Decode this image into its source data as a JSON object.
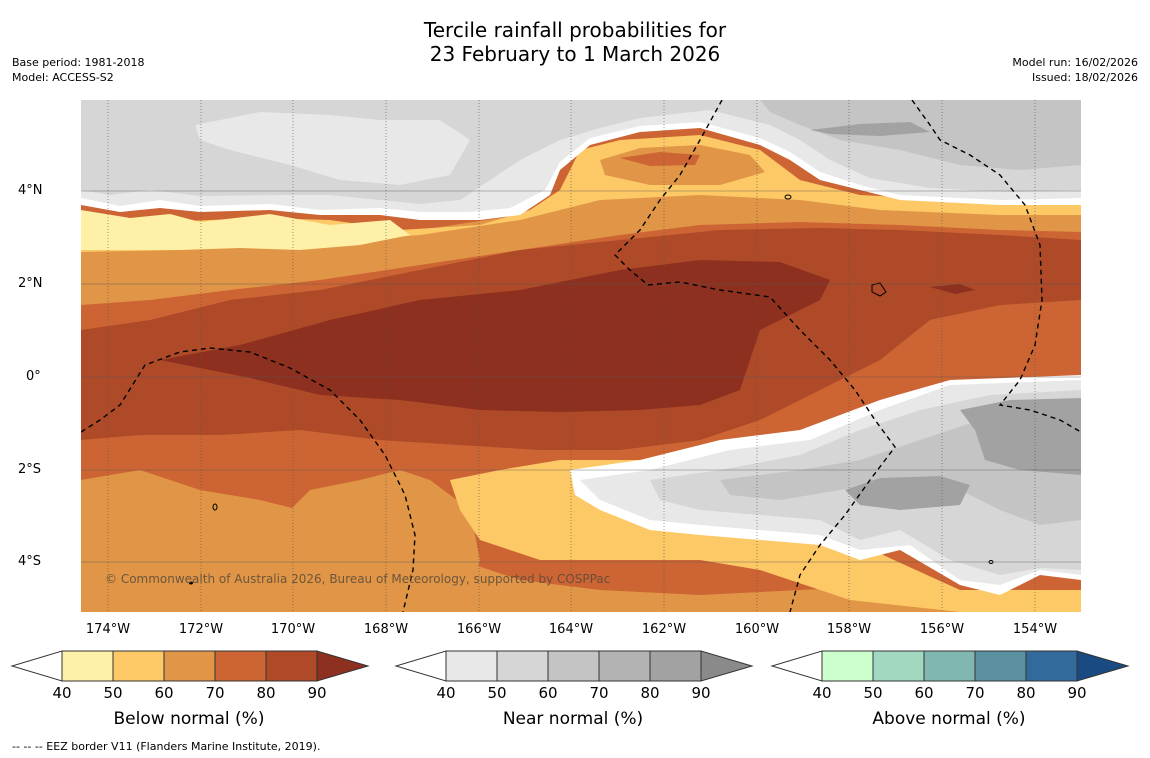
{
  "header": {
    "title_line1": "Tercile rainfall probabilities for",
    "title_line2": "23 February to 1 March 2026",
    "base_period": "Base period: 1981-2018",
    "model": "Model: ACCESS-S2",
    "model_run": "Model run: 16/02/2026",
    "issued": "Issued: 18/02/2026"
  },
  "map": {
    "lat_labels": [
      "4°N",
      "2°N",
      "0°",
      "2°S",
      "4°S"
    ],
    "lon_labels": [
      "174°W",
      "172°W",
      "170°W",
      "168°W",
      "166°W",
      "164°W",
      "162°W",
      "160°W",
      "158°W",
      "156°W",
      "154°W"
    ],
    "copyright": "© Commonwealth of Australia 2026, Bureau of Meteorology, supported by COSPPac"
  },
  "legend": {
    "ticks": [
      "40",
      "50",
      "60",
      "70",
      "80",
      "90"
    ],
    "below": {
      "label": "Below normal (%)",
      "colors": [
        "#fff0a8",
        "#fdc966",
        "#e09646",
        "#cd6433",
        "#ae4a28",
        "#8e3020"
      ]
    },
    "near": {
      "label": "Near normal (%)",
      "colors": [
        "#e8e8e8",
        "#d6d6d6",
        "#c4c4c4",
        "#b3b3b3",
        "#a2a2a2",
        "#8a8a8a"
      ]
    },
    "above": {
      "label": "Above normal (%)",
      "colors": [
        "#ccffcc",
        "#a3d8c0",
        "#80b8b0",
        "#5a90a0",
        "#336a9c",
        "#1a4a82"
      ]
    }
  },
  "footer": {
    "eez_note": "--  --  -- EEZ border V11 (Flanders Marine Institute, 2019)."
  }
}
